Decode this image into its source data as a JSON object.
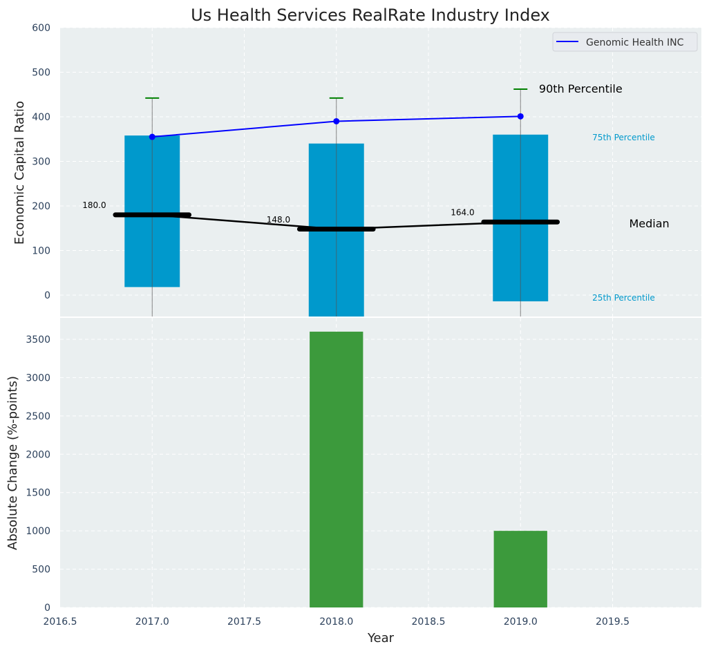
{
  "chart_data": [
    {
      "type": "bar",
      "title": "Us Health Services RealRate Industry Index",
      "ylabel": "Economic Capital Ratio",
      "xlim": [
        2016.5,
        2020
      ],
      "ylim": [
        -48,
        600
      ],
      "yticks": [
        0,
        100,
        200,
        300,
        400,
        500,
        600
      ],
      "grid": true,
      "x": [
        2017,
        2018,
        2019
      ],
      "percentile_25": [
        18,
        -60,
        -14
      ],
      "percentile_75": [
        358,
        340,
        360
      ],
      "percentile_90": [
        442,
        442,
        462
      ],
      "median": [
        180,
        148,
        164
      ],
      "median_labels": [
        "180.0",
        "148.0",
        "164.0"
      ],
      "series": [
        {
          "name": "Genomic Health INC",
          "values": [
            355,
            390,
            401
          ],
          "color": "#0000ff"
        }
      ],
      "legend": "top-right",
      "annotations": {
        "p90": "90th Percentile",
        "p75": "75th Percentile",
        "median": "Median",
        "p25": "25th Percentile"
      },
      "colors": {
        "box": "#0099cc",
        "whisker_cap": "#008000",
        "median": "#000000",
        "bg": "#eaeff0"
      }
    },
    {
      "type": "bar",
      "ylabel": "Absolute Change (%-points)",
      "xlabel": "Year",
      "xlim": [
        2016.5,
        2020
      ],
      "ylim": [
        0,
        3780
      ],
      "yticks": [
        0,
        500,
        1000,
        1500,
        2000,
        2500,
        3000,
        3500
      ],
      "xticks": [
        "2016.5",
        "2017.0",
        "2017.5",
        "2018.0",
        "2018.5",
        "2019.0",
        "2019.5"
      ],
      "x": [
        2018,
        2019
      ],
      "values": [
        3600,
        1000
      ],
      "color": "#3c9a3c"
    }
  ]
}
